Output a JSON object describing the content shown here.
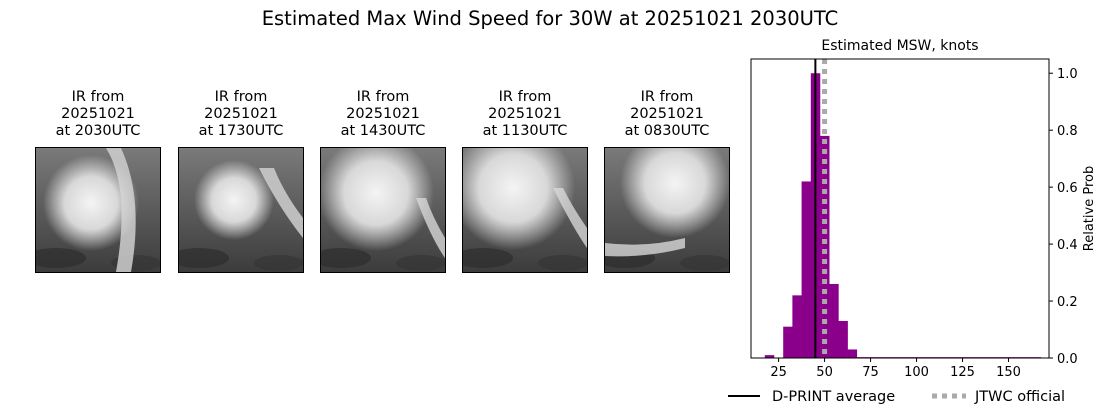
{
  "title": "Estimated Max Wind Speed for 30W at 20251021 2030UTC",
  "ir_panels": [
    {
      "line1": "IR from",
      "line2": "20251021",
      "line3": "at 2030UTC",
      "image": "ir-satellite-image"
    },
    {
      "line1": "IR from",
      "line2": "20251021",
      "line3": "at 1730UTC",
      "image": "ir-satellite-image"
    },
    {
      "line1": "IR from",
      "line2": "20251021",
      "line3": "at 1430UTC",
      "image": "ir-satellite-image"
    },
    {
      "line1": "IR from",
      "line2": "20251021",
      "line3": "at 1130UTC",
      "image": "ir-satellite-image"
    },
    {
      "line1": "IR from",
      "line2": "20251021",
      "line3": "at 0830UTC",
      "image": "ir-satellite-image"
    }
  ],
  "chart_data": {
    "type": "bar",
    "title": "Estimated MSW, knots",
    "xlabel": "",
    "ylabel": "Relative Prob",
    "xlim": [
      10,
      172
    ],
    "ylim": [
      0,
      1.05
    ],
    "xticks": [
      25,
      50,
      75,
      100,
      125,
      150
    ],
    "yticks": [
      0.0,
      0.2,
      0.4,
      0.6,
      0.8,
      1.0
    ],
    "bin_width": 5,
    "bar_color": "#8b008b",
    "histogram": {
      "bin_centers": [
        20,
        30,
        35,
        40,
        45,
        50,
        55,
        60,
        65,
        70,
        75,
        80,
        85,
        90,
        95,
        100,
        105,
        110,
        115,
        120,
        125,
        130,
        135,
        140,
        145,
        150,
        155,
        160,
        165
      ],
      "values": [
        0.01,
        0.11,
        0.22,
        0.62,
        1.0,
        0.78,
        0.26,
        0.13,
        0.03,
        0.003,
        0.003,
        0.003,
        0.003,
        0.003,
        0.003,
        0.003,
        0.003,
        0.003,
        0.003,
        0.003,
        0.003,
        0.003,
        0.003,
        0.003,
        0.003,
        0.003,
        0.003,
        0.003,
        0.003
      ]
    },
    "lines": [
      {
        "name": "D-PRINT average",
        "x": 45,
        "color": "#000000",
        "style": "solid"
      },
      {
        "name": "JTWC official",
        "x": 50,
        "color": "#aaaaaa",
        "style": "dotted"
      }
    ],
    "legend_position": "bottom"
  }
}
